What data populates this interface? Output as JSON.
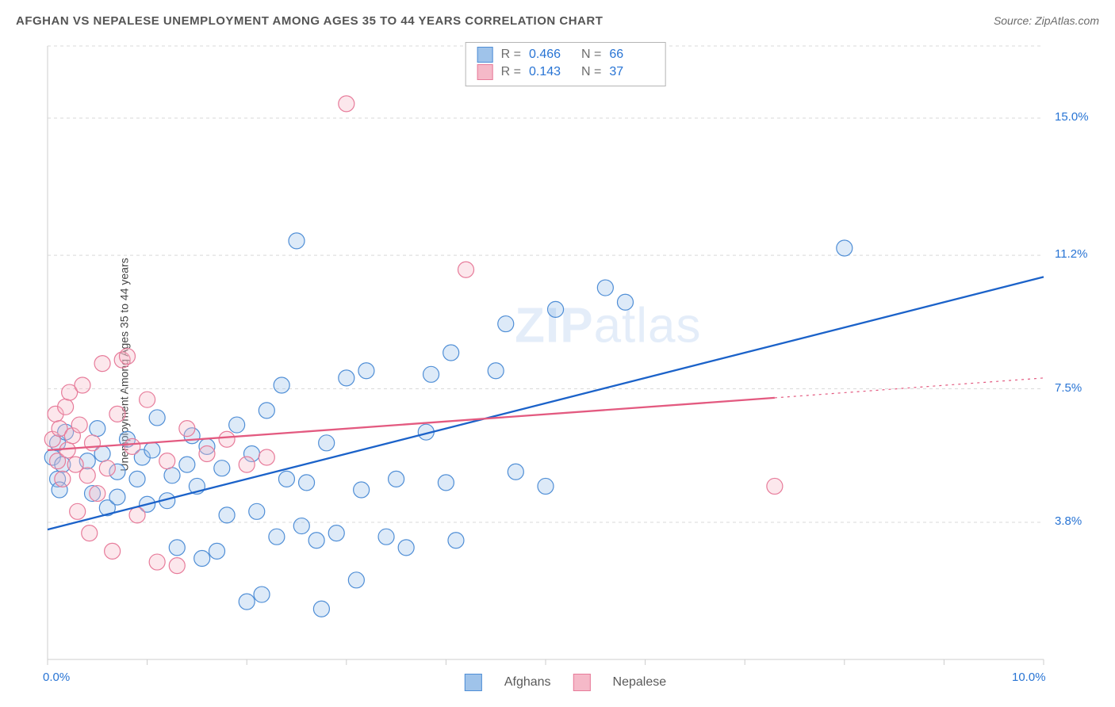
{
  "title": "AFGHAN VS NEPALESE UNEMPLOYMENT AMONG AGES 35 TO 44 YEARS CORRELATION CHART",
  "source": "Source: ZipAtlas.com",
  "ylabel": "Unemployment Among Ages 35 to 44 years",
  "watermark_a": "ZIP",
  "watermark_b": "atlas",
  "chart": {
    "type": "scatter",
    "background_color": "#ffffff",
    "plot_border_color": "#cccccc",
    "grid_color": "#d9d9d9",
    "grid_dash": "4,4",
    "xlim": [
      0,
      10
    ],
    "ylim": [
      0,
      17
    ],
    "x_tick_positions": [
      0,
      1,
      2,
      3,
      4,
      5,
      6,
      7,
      8,
      9,
      10
    ],
    "x_tick_labels_visible": {
      "0": "0.0%",
      "10": "10.0%"
    },
    "y_gridlines": [
      3.8,
      7.5,
      11.2,
      15.0,
      17.0
    ],
    "y_tick_labels": {
      "3.8": "3.8%",
      "7.5": "7.5%",
      "11.2": "11.2%",
      "15.0": "15.0%"
    },
    "marker_radius": 10,
    "marker_stroke_width": 1.2,
    "marker_fill_opacity": 0.35,
    "line_width": 2.3,
    "series": [
      {
        "name": "Afghans",
        "color_fill": "#9fc3ea",
        "color_stroke": "#4f8ed6",
        "trend_color": "#1b62c9",
        "r_value": "0.466",
        "n_value": "66",
        "trend_x": [
          0,
          10
        ],
        "trend_y": [
          3.6,
          10.6
        ],
        "points": [
          [
            0.05,
            5.6
          ],
          [
            0.1,
            6.0
          ],
          [
            0.1,
            5.0
          ],
          [
            0.12,
            4.7
          ],
          [
            0.15,
            5.4
          ],
          [
            0.18,
            6.3
          ],
          [
            0.4,
            5.5
          ],
          [
            0.45,
            4.6
          ],
          [
            0.5,
            6.4
          ],
          [
            0.55,
            5.7
          ],
          [
            0.6,
            4.2
          ],
          [
            0.7,
            5.2
          ],
          [
            0.7,
            4.5
          ],
          [
            0.8,
            6.1
          ],
          [
            0.9,
            5.0
          ],
          [
            0.95,
            5.6
          ],
          [
            1.0,
            4.3
          ],
          [
            1.05,
            5.8
          ],
          [
            1.1,
            6.7
          ],
          [
            1.2,
            4.4
          ],
          [
            1.25,
            5.1
          ],
          [
            1.3,
            3.1
          ],
          [
            1.4,
            5.4
          ],
          [
            1.45,
            6.2
          ],
          [
            1.5,
            4.8
          ],
          [
            1.55,
            2.8
          ],
          [
            1.6,
            5.9
          ],
          [
            1.7,
            3.0
          ],
          [
            1.75,
            5.3
          ],
          [
            1.8,
            4.0
          ],
          [
            1.9,
            6.5
          ],
          [
            2.0,
            1.6
          ],
          [
            2.05,
            5.7
          ],
          [
            2.1,
            4.1
          ],
          [
            2.15,
            1.8
          ],
          [
            2.2,
            6.9
          ],
          [
            2.3,
            3.4
          ],
          [
            2.35,
            7.6
          ],
          [
            2.4,
            5.0
          ],
          [
            2.5,
            11.6
          ],
          [
            2.55,
            3.7
          ],
          [
            2.6,
            4.9
          ],
          [
            2.7,
            3.3
          ],
          [
            2.75,
            1.4
          ],
          [
            2.8,
            6.0
          ],
          [
            2.9,
            3.5
          ],
          [
            3.0,
            7.8
          ],
          [
            3.1,
            2.2
          ],
          [
            3.15,
            4.7
          ],
          [
            3.2,
            8.0
          ],
          [
            3.4,
            3.4
          ],
          [
            3.5,
            5.0
          ],
          [
            3.6,
            3.1
          ],
          [
            3.8,
            6.3
          ],
          [
            3.85,
            7.9
          ],
          [
            4.0,
            4.9
          ],
          [
            4.05,
            8.5
          ],
          [
            4.1,
            3.3
          ],
          [
            4.5,
            8.0
          ],
          [
            4.6,
            9.3
          ],
          [
            4.7,
            5.2
          ],
          [
            5.0,
            4.8
          ],
          [
            5.1,
            9.7
          ],
          [
            5.6,
            10.3
          ],
          [
            5.8,
            9.9
          ],
          [
            8.0,
            11.4
          ]
        ]
      },
      {
        "name": "Nepalese",
        "color_fill": "#f5b9c8",
        "color_stroke": "#e77b9a",
        "trend_color": "#e35a80",
        "trend_extrap_dash": "3,5",
        "r_value": "0.143",
        "n_value": "37",
        "trend_x": [
          0,
          7.3,
          10
        ],
        "trend_y": [
          5.8,
          7.25,
          7.8
        ],
        "points": [
          [
            0.05,
            6.1
          ],
          [
            0.08,
            6.8
          ],
          [
            0.1,
            5.5
          ],
          [
            0.12,
            6.4
          ],
          [
            0.15,
            5.0
          ],
          [
            0.18,
            7.0
          ],
          [
            0.2,
            5.8
          ],
          [
            0.22,
            7.4
          ],
          [
            0.25,
            6.2
          ],
          [
            0.28,
            5.4
          ],
          [
            0.3,
            4.1
          ],
          [
            0.32,
            6.5
          ],
          [
            0.35,
            7.6
          ],
          [
            0.4,
            5.1
          ],
          [
            0.42,
            3.5
          ],
          [
            0.45,
            6.0
          ],
          [
            0.5,
            4.6
          ],
          [
            0.55,
            8.2
          ],
          [
            0.6,
            5.3
          ],
          [
            0.65,
            3.0
          ],
          [
            0.7,
            6.8
          ],
          [
            0.75,
            8.3
          ],
          [
            0.8,
            8.4
          ],
          [
            0.85,
            5.9
          ],
          [
            0.9,
            4.0
          ],
          [
            1.0,
            7.2
          ],
          [
            1.1,
            2.7
          ],
          [
            1.2,
            5.5
          ],
          [
            1.3,
            2.6
          ],
          [
            1.4,
            6.4
          ],
          [
            1.6,
            5.7
          ],
          [
            1.8,
            6.1
          ],
          [
            2.0,
            5.4
          ],
          [
            2.2,
            5.6
          ],
          [
            3.0,
            15.4
          ],
          [
            4.2,
            10.8
          ],
          [
            7.3,
            4.8
          ]
        ]
      }
    ],
    "legend_box": {
      "bg": "#ffffff",
      "border": "#b5b5b5",
      "r_label": "R =",
      "n_label": "N ="
    },
    "bottom_legend_labels": [
      "Afghans",
      "Nepalese"
    ]
  }
}
